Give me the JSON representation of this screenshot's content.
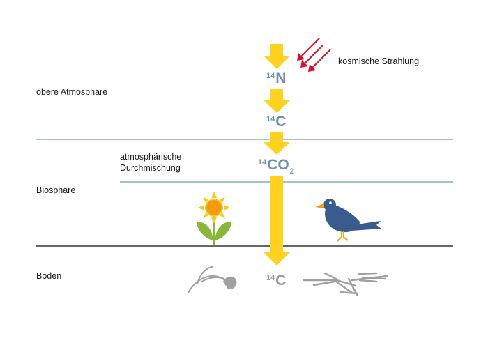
{
  "zones": {
    "upper_atmosphere": "obere Atmosphäre",
    "biosphere": "Biosphäre",
    "soil": "Boden"
  },
  "annotations": {
    "cosmic_radiation": "kosmische Strahlung",
    "mixing_line1": "atmosphärische",
    "mixing_line2": "Durchmischung"
  },
  "isotopes": {
    "n14": {
      "mass": "14",
      "symbol": "N"
    },
    "c14": {
      "mass": "14",
      "symbol": "C"
    },
    "co2": {
      "mass": "14",
      "symbol": "CO",
      "sub": "2"
    },
    "soil_c14": {
      "mass": "14",
      "symbol": "C"
    }
  },
  "colors": {
    "arrow": "#FFD21F",
    "radiation": "#D5132A",
    "isotope": "#6F8FAE",
    "zone_line": "#8EA9C1",
    "ground_line": "#333333",
    "bird": "#3B5B8F",
    "flower_petal": "#F8C81E",
    "flower_center": "#F39A10",
    "leaf": "#8AB63A",
    "fossil": "#A0A0A0"
  }
}
